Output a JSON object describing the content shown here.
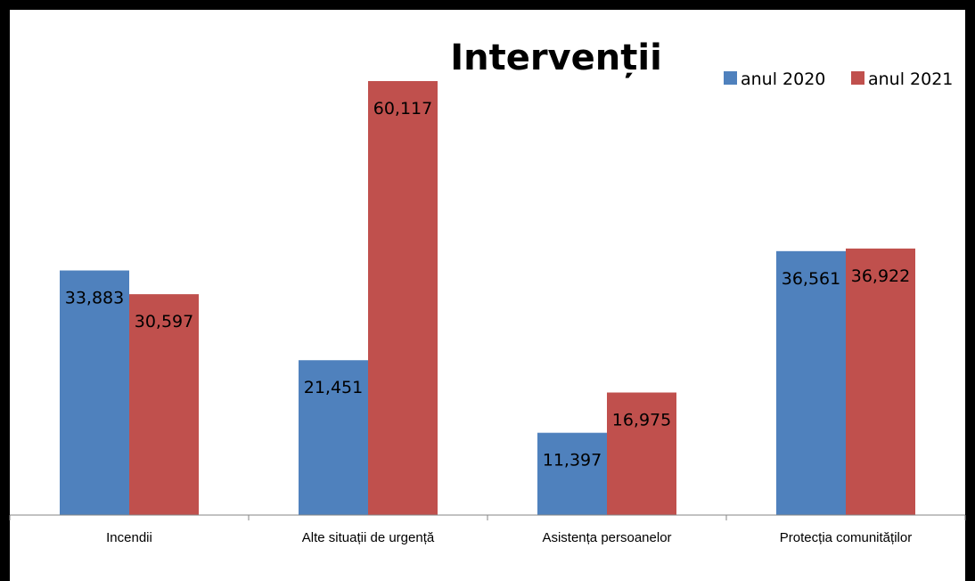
{
  "chart_data": {
    "type": "bar",
    "title": "Intervenții",
    "xlabel": "",
    "ylabel": "",
    "ylim": [
      0,
      66000
    ],
    "grid": false,
    "legend_position": "top-right",
    "categories": [
      "Incendii",
      "Alte situații de urgență",
      "Asistența persoanelor",
      "Protecția comunităților"
    ],
    "series": [
      {
        "name": "anul 2020",
        "color": "#4F81BD",
        "values": [
          33883,
          21451,
          11397,
          36561
        ],
        "labels": [
          "33,883",
          "21,451",
          "11,397",
          "36,561"
        ]
      },
      {
        "name": "anul 2021",
        "color": "#C0504D",
        "values": [
          30597,
          60117,
          16975,
          36922
        ],
        "labels": [
          "30,597",
          "60,117",
          "16,975",
          "36,922"
        ]
      }
    ]
  }
}
